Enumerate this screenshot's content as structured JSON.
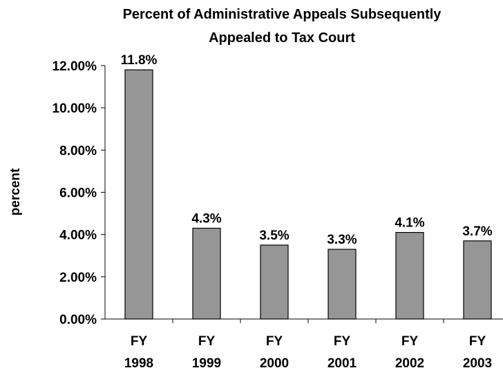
{
  "chart_data": {
    "type": "bar",
    "title": "Percent of Administrative Appeals Subsequently Appealed to Tax Court",
    "y_label": "percent",
    "categories": [
      "FY 1998",
      "FY 1999",
      "FY 2000",
      "FY 2001",
      "FY 2002",
      "FY 2003"
    ],
    "values": [
      11.8,
      4.3,
      3.5,
      3.3,
      4.1,
      3.7
    ],
    "value_labels": [
      "11.8%",
      "4.3%",
      "3.5%",
      "3.3%",
      "4.1%",
      "3.7%"
    ],
    "color": "#969696",
    "ylim": [
      0,
      12
    ],
    "yticks": [
      {
        "value": 0,
        "label": "0.00%"
      },
      {
        "value": 2,
        "label": "2.00%"
      },
      {
        "value": 4,
        "label": "4.00%"
      },
      {
        "value": 6,
        "label": "6.00%"
      },
      {
        "value": 8,
        "label": "8.00%"
      },
      {
        "value": 10,
        "label": "10.00%"
      },
      {
        "value": 12,
        "label": "12.00%"
      }
    ],
    "grid": false
  }
}
